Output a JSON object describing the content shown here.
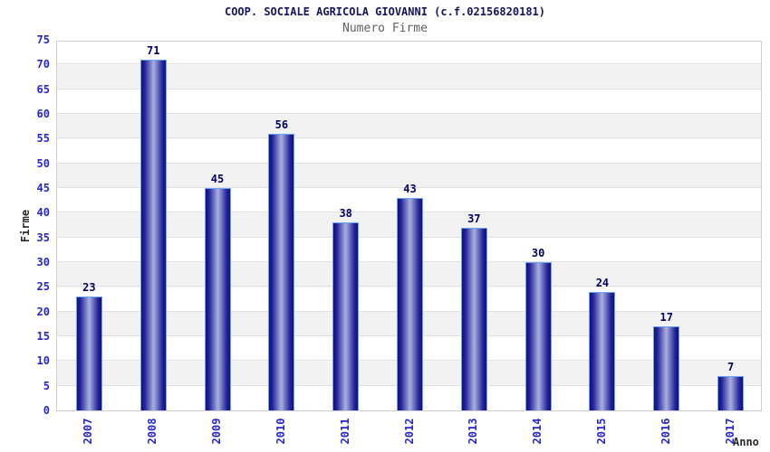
{
  "chart_data": {
    "type": "bar",
    "title": "COOP. SOCIALE AGRICOLA GIOVANNI (c.f.02156820181)",
    "subtitle": "Numero Firme",
    "xlabel": "Anno",
    "ylabel": "Firme",
    "categories": [
      "2007",
      "2008",
      "2009",
      "2010",
      "2011",
      "2012",
      "2013",
      "2014",
      "2015",
      "2016",
      "2017"
    ],
    "values": [
      23,
      71,
      45,
      56,
      38,
      43,
      37,
      30,
      24,
      17,
      7
    ],
    "ylim": [
      0,
      75
    ],
    "ytick_step": 5,
    "yticks": [
      0,
      5,
      10,
      15,
      20,
      25,
      30,
      35,
      40,
      45,
      50,
      55,
      60,
      65,
      70,
      75
    ],
    "grid": true,
    "legend": "none",
    "colors": {
      "title": "#15155e",
      "subtitle": "#606060",
      "tick_labels": "#2626cf",
      "value_labels": "#000066",
      "axis_titles": "#2a2a2a",
      "bar_dark": "#10107a",
      "bar_light": "#a9b1de",
      "bar_border": "#6ba4f2",
      "band_gray": "#f2f2f2",
      "gridline": "#e0e0e0",
      "plot_border": "#d0d0d0"
    }
  }
}
